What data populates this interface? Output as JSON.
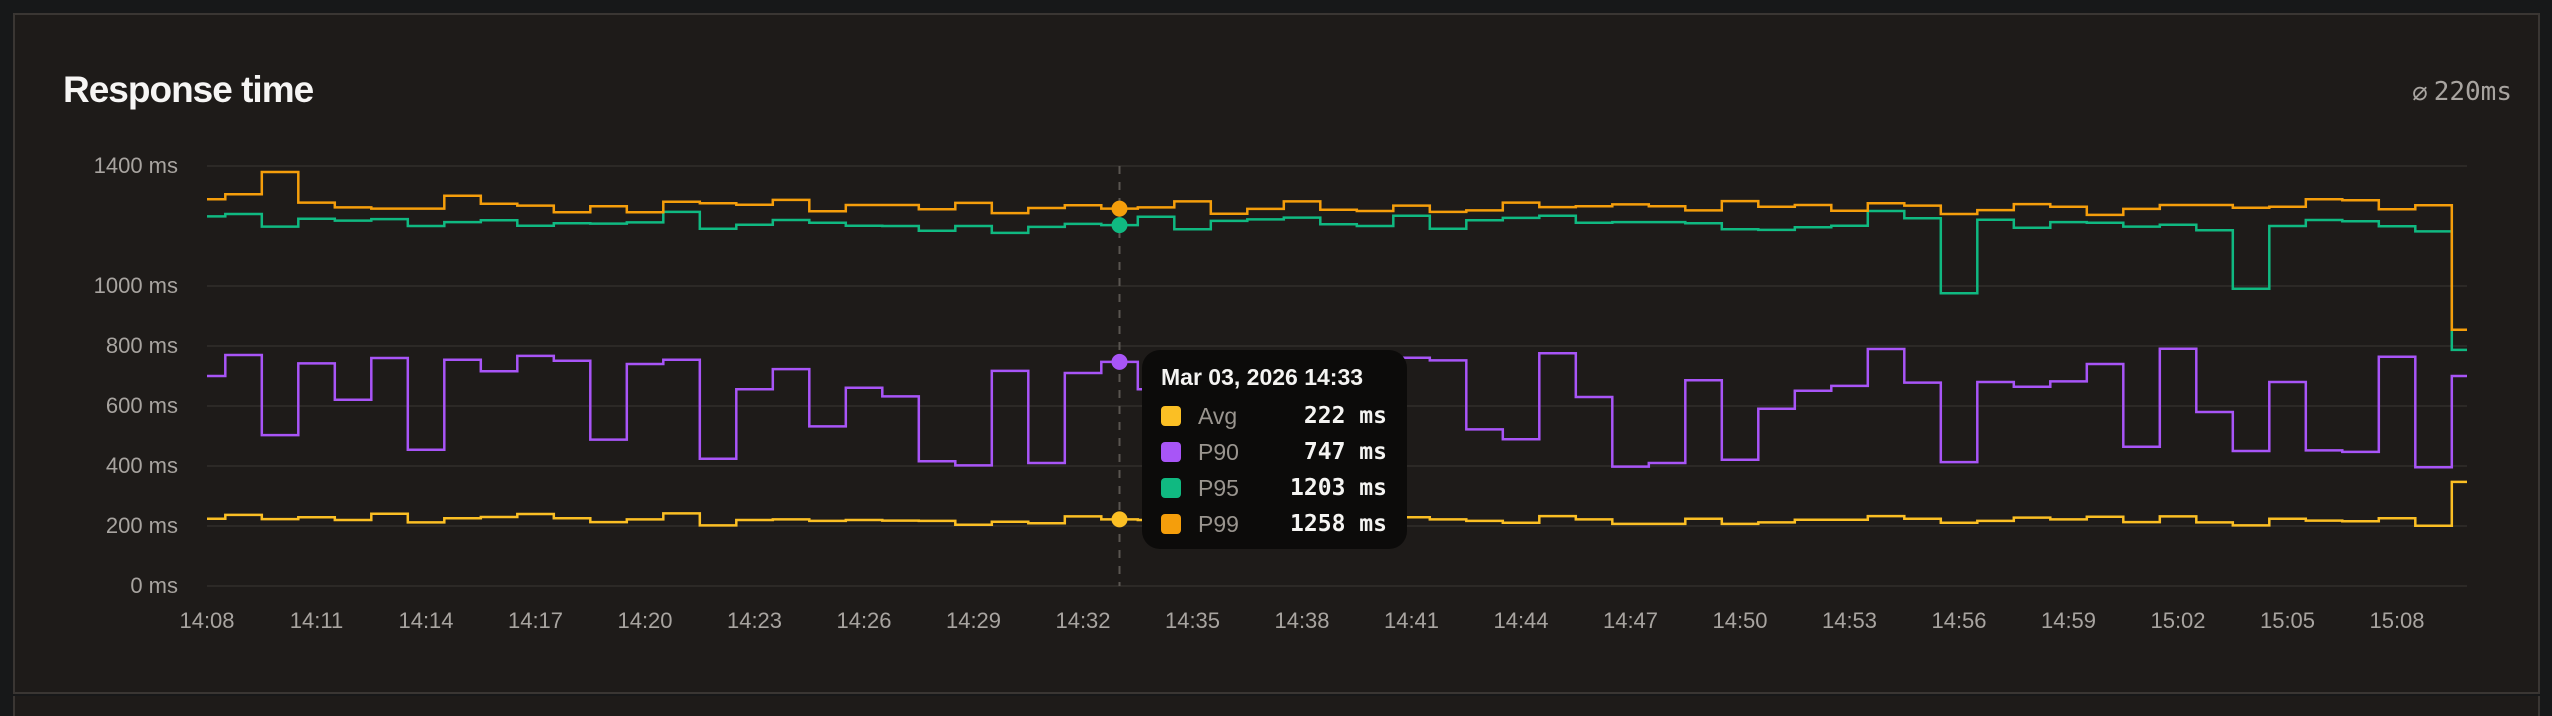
{
  "card": {
    "title": "Response time",
    "summary_icon": "average-icon",
    "summary_icon_glyph": "⌀",
    "summary_value": "220ms"
  },
  "colors": {
    "avg": "#fbbf24",
    "p90": "#a855f7",
    "p95": "#10b981",
    "p99": "#f59e0b",
    "grid": "#2c2926",
    "crosshair": "#5a5651"
  },
  "tooltip": {
    "title": "Mar 03, 2026 14:33",
    "rows": [
      {
        "key": "avg",
        "label": "Avg",
        "value": "222",
        "unit": "ms",
        "color": "#fbbf24"
      },
      {
        "key": "p90",
        "label": "P90",
        "value": "747",
        "unit": "ms",
        "color": "#a855f7"
      },
      {
        "key": "p95",
        "label": "P95",
        "value": "1203",
        "unit": "ms",
        "color": "#10b981"
      },
      {
        "key": "p99",
        "label": "P99",
        "value": "1258",
        "unit": "ms",
        "color": "#f59e0b"
      }
    ],
    "hover_index": 25
  },
  "chart_data": {
    "type": "line",
    "subtype": "step",
    "title": "Response time",
    "xlabel": "",
    "ylabel": "",
    "ylim": [
      0,
      1400
    ],
    "yticks": [
      0,
      200,
      400,
      600,
      800,
      1000,
      1400
    ],
    "ytick_labels": [
      "0 ms",
      "200 ms",
      "400 ms",
      "600 ms",
      "800 ms",
      "1000 ms",
      "1400 ms"
    ],
    "xtick_labels": [
      "14:08",
      "14:11",
      "14:14",
      "14:17",
      "14:20",
      "14:23",
      "14:26",
      "14:29",
      "14:32",
      "14:35",
      "14:38",
      "14:41",
      "14:44",
      "14:47",
      "14:50",
      "14:53",
      "14:56",
      "14:59",
      "15:02",
      "15:05",
      "15:08"
    ],
    "x_start": "14:08",
    "x_end": "15:10",
    "x_step_minutes": 1,
    "grid": true,
    "legend": "tooltip",
    "series": [
      {
        "name": "Avg",
        "key": "avg",
        "color": "#fbbf24",
        "values": [
          224,
          237,
          223,
          229,
          220,
          241,
          212,
          226,
          230,
          240,
          226,
          213,
          222,
          242,
          202,
          220,
          222,
          217,
          220,
          218,
          217,
          204,
          214,
          209,
          232,
          222,
          220,
          224,
          218,
          226,
          221,
          219,
          225,
          229,
          222,
          217,
          211,
          233,
          222,
          207,
          207,
          224,
          207,
          212,
          221,
          221,
          233,
          224,
          211,
          217,
          228,
          222,
          231,
          213,
          232,
          212,
          202,
          224,
          218,
          216,
          226,
          201,
          347
        ]
      },
      {
        "name": "P90",
        "key": "p90",
        "color": "#a855f7",
        "values": [
          700,
          770,
          503,
          742,
          621,
          760,
          454,
          754,
          716,
          767,
          751,
          488,
          740,
          754,
          424,
          656,
          723,
          532,
          661,
          632,
          416,
          402,
          717,
          410,
          710,
          747,
          656,
          700,
          620,
          740,
          680,
          760,
          755,
          761,
          752,
          522,
          489,
          776,
          630,
          398,
          410,
          686,
          421,
          591,
          651,
          667,
          790,
          678,
          413,
          680,
          664,
          682,
          740,
          464,
          791,
          580,
          450,
          680,
          452,
          447,
          764,
          396,
          700
        ]
      },
      {
        "name": "P95",
        "key": "p95",
        "color": "#10b981",
        "values": [
          1232,
          1240,
          1198,
          1224,
          1218,
          1223,
          1200,
          1213,
          1219,
          1201,
          1209,
          1208,
          1212,
          1247,
          1191,
          1204,
          1220,
          1211,
          1201,
          1200,
          1184,
          1200,
          1177,
          1197,
          1207,
          1203,
          1231,
          1189,
          1217,
          1222,
          1228,
          1206,
          1200,
          1234,
          1191,
          1219,
          1227,
          1234,
          1211,
          1213,
          1213,
          1209,
          1189,
          1187,
          1196,
          1201,
          1250,
          1226,
          976,
          1221,
          1194,
          1213,
          1211,
          1198,
          1204,
          1186,
          991,
          1200,
          1220,
          1216,
          1199,
          1182,
          787
        ]
      },
      {
        "name": "P99",
        "key": "p99",
        "color": "#f59e0b",
        "values": [
          1289,
          1306,
          1380,
          1278,
          1262,
          1258,
          1258,
          1301,
          1274,
          1268,
          1246,
          1266,
          1246,
          1281,
          1276,
          1271,
          1287,
          1249,
          1270,
          1270,
          1256,
          1277,
          1243,
          1260,
          1269,
          1258,
          1262,
          1282,
          1241,
          1257,
          1282,
          1254,
          1250,
          1268,
          1247,
          1252,
          1278,
          1263,
          1266,
          1272,
          1266,
          1252,
          1283,
          1264,
          1270,
          1251,
          1276,
          1268,
          1240,
          1253,
          1273,
          1264,
          1237,
          1257,
          1270,
          1270,
          1261,
          1264,
          1289,
          1286,
          1256,
          1269,
          854
        ]
      }
    ]
  }
}
